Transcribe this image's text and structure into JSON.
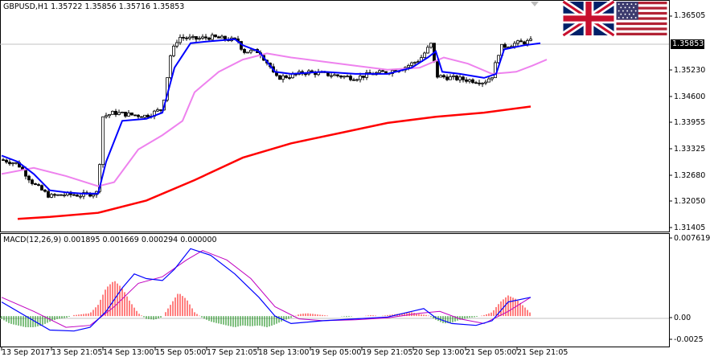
{
  "symbol_header": "GBPUSD,H1  1.35722 1.35856 1.35716 1.35853",
  "macd_header": "MACD(12,26,9) 0.001895 0.001669 0.000294 0.000000",
  "current_price": "1.35853",
  "price_axis": [
    "1.36505",
    "1.35230",
    "1.34600",
    "1.33955",
    "1.33325",
    "1.32680",
    "1.32050",
    "1.31405"
  ],
  "macd_axis": [
    "0.007619",
    "0.00",
    "-0.0025"
  ],
  "time_axis": [
    "13 Sep 2017",
    "13 Sep 21:05",
    "14 Sep 13:00",
    "15 Sep 05:00",
    "17 Sep 21:05",
    "18 Sep 13:00",
    "19 Sep 05:00",
    "19 Sep 21:05",
    "20 Sep 13:00",
    "21 Sep 05:00",
    "21 Sep 21:05"
  ],
  "flags": [
    "uk-flag-icon",
    "us-flag-icon"
  ],
  "colors": {
    "bull_candle": "#ffffff",
    "bear_candle": "#000000",
    "fast_ma": "#0000ff",
    "slow_ma": "#ee82ee",
    "long_ma": "#ff0000",
    "hist_pos": "#ff0000",
    "hist_neg": "#008000",
    "macd_line": "#0000ff",
    "signal_line": "#c000c0"
  },
  "chart_data": {
    "type": "line",
    "price_points": [
      [
        0,
        1.3295
      ],
      [
        20,
        1.3285
      ],
      [
        40,
        1.3235
      ],
      [
        60,
        1.3205
      ],
      [
        80,
        1.321
      ],
      [
        100,
        1.3208
      ],
      [
        120,
        1.3215
      ],
      [
        125,
        1.34
      ],
      [
        140,
        1.341
      ],
      [
        160,
        1.3405
      ],
      [
        180,
        1.3402
      ],
      [
        200,
        1.342
      ],
      [
        210,
        1.355
      ],
      [
        220,
        1.3595
      ],
      [
        240,
        1.359
      ],
      [
        260,
        1.3595
      ],
      [
        280,
        1.359
      ],
      [
        295,
        1.3585
      ],
      [
        300,
        1.356
      ],
      [
        320,
        1.356
      ],
      [
        335,
        1.352
      ],
      [
        340,
        1.3495
      ],
      [
        360,
        1.35
      ],
      [
        380,
        1.351
      ],
      [
        400,
        1.3505
      ],
      [
        420,
        1.35
      ],
      [
        440,
        1.3495
      ],
      [
        460,
        1.3505
      ],
      [
        480,
        1.351
      ],
      [
        500,
        1.352
      ],
      [
        520,
        1.354
      ],
      [
        535,
        1.358
      ],
      [
        540,
        1.35
      ],
      [
        560,
        1.3495
      ],
      [
        580,
        1.349
      ],
      [
        600,
        1.3485
      ],
      [
        610,
        1.35
      ],
      [
        620,
        1.357
      ],
      [
        640,
        1.358
      ],
      [
        660,
        1.3585
      ]
    ],
    "fast_ma": [
      [
        0,
        1.3305
      ],
      [
        20,
        1.329
      ],
      [
        40,
        1.326
      ],
      [
        60,
        1.322
      ],
      [
        80,
        1.3215
      ],
      [
        100,
        1.3212
      ],
      [
        120,
        1.3212
      ],
      [
        130,
        1.329
      ],
      [
        150,
        1.339
      ],
      [
        180,
        1.3395
      ],
      [
        200,
        1.341
      ],
      [
        215,
        1.352
      ],
      [
        235,
        1.358
      ],
      [
        260,
        1.3585
      ],
      [
        290,
        1.359
      ],
      [
        300,
        1.3575
      ],
      [
        320,
        1.356
      ],
      [
        340,
        1.351
      ],
      [
        360,
        1.3505
      ],
      [
        400,
        1.351
      ],
      [
        440,
        1.3505
      ],
      [
        480,
        1.3505
      ],
      [
        510,
        1.352
      ],
      [
        530,
        1.3545
      ],
      [
        540,
        1.356
      ],
      [
        548,
        1.351
      ],
      [
        570,
        1.3505
      ],
      [
        600,
        1.3495
      ],
      [
        615,
        1.3505
      ],
      [
        625,
        1.3565
      ],
      [
        650,
        1.3575
      ],
      [
        670,
        1.358
      ]
    ],
    "slow_ma": [
      [
        0,
        1.326
      ],
      [
        40,
        1.3275
      ],
      [
        80,
        1.3255
      ],
      [
        120,
        1.323
      ],
      [
        140,
        1.324
      ],
      [
        170,
        1.332
      ],
      [
        200,
        1.3355
      ],
      [
        225,
        1.339
      ],
      [
        240,
        1.346
      ],
      [
        270,
        1.351
      ],
      [
        300,
        1.354
      ],
      [
        330,
        1.3555
      ],
      [
        360,
        1.3545
      ],
      [
        400,
        1.3535
      ],
      [
        440,
        1.3525
      ],
      [
        480,
        1.3515
      ],
      [
        520,
        1.352
      ],
      [
        550,
        1.3545
      ],
      [
        580,
        1.353
      ],
      [
        610,
        1.3505
      ],
      [
        640,
        1.351
      ],
      [
        660,
        1.3525
      ],
      [
        678,
        1.354
      ]
    ],
    "long_ma": [
      [
        20,
        1.315
      ],
      [
        60,
        1.3155
      ],
      [
        120,
        1.3165
      ],
      [
        180,
        1.3195
      ],
      [
        240,
        1.3245
      ],
      [
        300,
        1.33
      ],
      [
        360,
        1.3335
      ],
      [
        420,
        1.336
      ],
      [
        480,
        1.3385
      ],
      [
        540,
        1.34
      ],
      [
        600,
        1.341
      ],
      [
        658,
        1.3425
      ]
    ],
    "macd_line": [
      [
        0,
        0.0015
      ],
      [
        30,
        0.0
      ],
      [
        60,
        -0.0015
      ],
      [
        90,
        -0.0016
      ],
      [
        110,
        -0.0012
      ],
      [
        130,
        0.0005
      ],
      [
        150,
        0.003
      ],
      [
        165,
        0.0045
      ],
      [
        180,
        0.004
      ],
      [
        200,
        0.0038
      ],
      [
        215,
        0.005
      ],
      [
        235,
        0.0072
      ],
      [
        260,
        0.0065
      ],
      [
        290,
        0.0045
      ],
      [
        320,
        0.002
      ],
      [
        340,
        0.0
      ],
      [
        360,
        -0.0008
      ],
      [
        400,
        -0.0005
      ],
      [
        440,
        -0.0003
      ],
      [
        480,
        -0.0001
      ],
      [
        510,
        0.0005
      ],
      [
        525,
        0.0008
      ],
      [
        540,
        -0.0002
      ],
      [
        560,
        -0.0008
      ],
      [
        590,
        -0.001
      ],
      [
        610,
        -0.0005
      ],
      [
        630,
        0.0015
      ],
      [
        658,
        0.002
      ]
    ],
    "signal_line": [
      [
        0,
        0.002
      ],
      [
        40,
        0.0005
      ],
      [
        80,
        -0.0012
      ],
      [
        110,
        -0.001
      ],
      [
        140,
        0.001
      ],
      [
        170,
        0.0035
      ],
      [
        200,
        0.0042
      ],
      [
        230,
        0.006
      ],
      [
        250,
        0.007
      ],
      [
        280,
        0.006
      ],
      [
        310,
        0.004
      ],
      [
        340,
        0.001
      ],
      [
        370,
        -0.0003
      ],
      [
        400,
        -0.0005
      ],
      [
        440,
        -0.0004
      ],
      [
        480,
        -0.0002
      ],
      [
        520,
        0.0003
      ],
      [
        545,
        0.0005
      ],
      [
        570,
        -0.0003
      ],
      [
        600,
        -0.0008
      ],
      [
        630,
        0.0005
      ],
      [
        658,
        0.002
      ]
    ],
    "histogram": [
      [
        0,
        -0.0003
      ],
      [
        10,
        -0.0008
      ],
      [
        20,
        -0.001
      ],
      [
        30,
        -0.0012
      ],
      [
        40,
        -0.0012
      ],
      [
        50,
        -0.001
      ],
      [
        60,
        -0.0006
      ],
      [
        70,
        -0.0003
      ],
      [
        80,
        -0.0002
      ],
      [
        90,
        0.0001
      ],
      [
        100,
        0.0002
      ],
      [
        110,
        0.0003
      ],
      [
        120,
        0.0012
      ],
      [
        130,
        0.003
      ],
      [
        140,
        0.0038
      ],
      [
        150,
        0.003
      ],
      [
        160,
        0.0015
      ],
      [
        170,
        0.0003
      ],
      [
        180,
        -0.0003
      ],
      [
        190,
        -0.0004
      ],
      [
        200,
        -0.0001
      ],
      [
        210,
        0.0012
      ],
      [
        220,
        0.0025
      ],
      [
        230,
        0.0018
      ],
      [
        240,
        0.0004
      ],
      [
        250,
        -0.0002
      ],
      [
        260,
        -0.0006
      ],
      [
        270,
        -0.0008
      ],
      [
        280,
        -0.001
      ],
      [
        290,
        -0.0012
      ],
      [
        300,
        -0.001
      ],
      [
        310,
        -0.0011
      ],
      [
        320,
        -0.001
      ],
      [
        330,
        -0.0012
      ],
      [
        340,
        -0.0009
      ],
      [
        350,
        -0.0005
      ],
      [
        360,
        -0.0002
      ],
      [
        370,
        0.0002
      ],
      [
        380,
        0.0003
      ],
      [
        390,
        0.0002
      ],
      [
        400,
        0.0001
      ],
      [
        410,
        0.0
      ],
      [
        420,
        0.0
      ],
      [
        430,
        -0.0001
      ],
      [
        440,
        0.0
      ],
      [
        450,
        0.0
      ],
      [
        460,
        0.0001
      ],
      [
        470,
        0.0
      ],
      [
        480,
        0.0001
      ],
      [
        490,
        0.0002
      ],
      [
        500,
        0.0003
      ],
      [
        510,
        0.0004
      ],
      [
        520,
        0.0002
      ],
      [
        530,
        0.0001
      ],
      [
        540,
        -0.0004
      ],
      [
        550,
        -0.0008
      ],
      [
        560,
        -0.0007
      ],
      [
        570,
        -0.0004
      ],
      [
        580,
        -0.0002
      ],
      [
        590,
        -0.0001
      ],
      [
        600,
        0.0001
      ],
      [
        610,
        0.0004
      ],
      [
        620,
        0.0015
      ],
      [
        630,
        0.0022
      ],
      [
        640,
        0.0018
      ],
      [
        650,
        0.001
      ],
      [
        658,
        0.0003
      ]
    ],
    "price_ylim": [
      1.3125,
      1.367
    ],
    "macd_ylim": [
      -0.003,
      0.008
    ]
  }
}
